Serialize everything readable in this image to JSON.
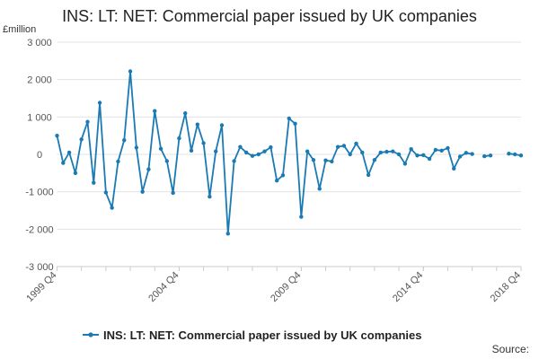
{
  "chart_data": {
    "type": "line",
    "title": "INS: LT: NET: Commercial paper issued by UK companies",
    "unit_label": "£million",
    "legend_position": "bottom",
    "source_label": "Source:",
    "color": "#1a7ab4",
    "ylim": [
      -3000,
      3000
    ],
    "y_ticks": [
      3000,
      2000,
      1000,
      0,
      -1000,
      -2000,
      -3000
    ],
    "y_tick_labels": [
      "3 000",
      "2 000",
      "1 000",
      "0",
      "-1 000",
      "-2 000",
      "-3 000"
    ],
    "x_tick_labels": [
      {
        "label": "1999 Q4",
        "index": 0
      },
      {
        "label": "2004 Q4",
        "index": 20
      },
      {
        "label": "2009 Q4",
        "index": 40
      },
      {
        "label": "2014 Q4",
        "index": 60
      },
      {
        "label": "2018 Q4",
        "index": 76
      }
    ],
    "series": [
      {
        "name": "INS: LT: NET: Commercial paper issued by UK companies",
        "values": [
          500,
          -230,
          50,
          -500,
          400,
          870,
          -760,
          1380,
          -1020,
          -1430,
          -190,
          380,
          2220,
          180,
          -1000,
          -400,
          1160,
          150,
          -180,
          -1030,
          430,
          1100,
          100,
          800,
          300,
          -1130,
          80,
          780,
          -2120,
          -180,
          200,
          50,
          -40,
          0,
          80,
          190,
          -700,
          -560,
          960,
          820,
          -1670,
          80,
          -150,
          -920,
          -160,
          -190,
          200,
          230,
          0,
          290,
          50,
          -550,
          -150,
          50,
          70,
          80,
          0,
          -250,
          140,
          -30,
          -20,
          -120,
          120,
          100,
          170,
          -380,
          -60,
          40,
          10,
          null,
          -50,
          -30,
          null,
          null,
          20,
          0,
          -30
        ]
      }
    ]
  }
}
